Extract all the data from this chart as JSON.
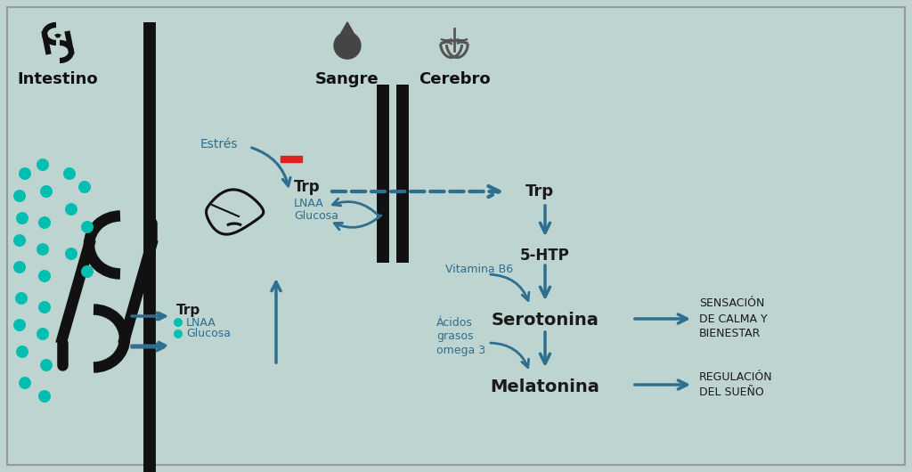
{
  "bg_color": "#bdd4d0",
  "border_color": "#999999",
  "arrow_color": "#2e6e8e",
  "text_dark": "#1a1a1a",
  "text_blue": "#2e6e8e",
  "red_color": "#dd2222",
  "teal_color": "#00bfb0",
  "black_color": "#111111",
  "gray_icon": "#555555",
  "title_intestino": "Intestino",
  "title_sangre": "Sangre",
  "title_cerebro": "Cerebro",
  "label_estres": "Estrés",
  "label_trp": "Trp",
  "label_lnaa": "LNAA",
  "label_glucosa": "Glucosa",
  "label_5htp": "5-HTP",
  "label_serotonina": "Serotonina",
  "label_melatonina": "Melatonina",
  "label_vitb6": "Vitamina B6",
  "label_acidos": "Ácidos\ngrasos\nomega 3",
  "label_sensacion": "SENSACIÓN\nDE CALMA Y\nBIENESTAR",
  "label_regulacion": "REGULACIÓN\nDEL SUEÑO"
}
